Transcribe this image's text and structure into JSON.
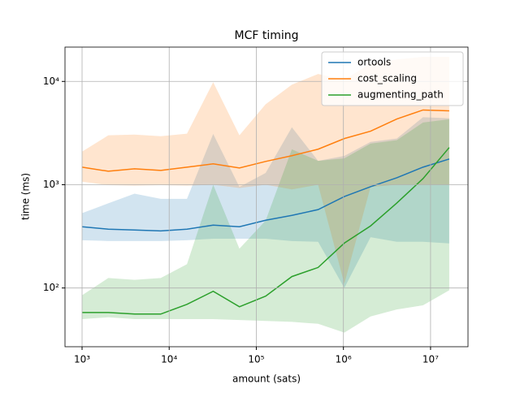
{
  "chart_data": {
    "type": "line",
    "title": "MCF timing",
    "xlabel": "amount (sats)",
    "ylabel": "time (ms)",
    "x": [
      1000,
      2000,
      4000,
      8000,
      16000,
      32000,
      64000,
      128000,
      256000,
      512000,
      1024000,
      2048000,
      4096000,
      8192000,
      16384000
    ],
    "series": [
      {
        "name": "ortools",
        "color": "#1f77b4",
        "values": [
          392,
          371,
          364,
          357,
          371,
          406,
          392,
          453,
          505,
          574,
          768,
          956,
          1167,
          1479,
          1774
        ],
        "lower": [
          290,
          285,
          285,
          285,
          290,
          300,
          300,
          300,
          285,
          280,
          100,
          310,
          280,
          280,
          270
        ],
        "upper": [
          530,
          660,
          820,
          730,
          730,
          3100,
          950,
          1300,
          3600,
          1700,
          1900,
          2600,
          2800,
          4500,
          4400
        ]
      },
      {
        "name": "cost_scaling",
        "color": "#ff7f0e",
        "values": [
          1479,
          1350,
          1426,
          1374,
          1479,
          1592,
          1452,
          1680,
          1909,
          2208,
          2799,
          3296,
          4325,
          5289,
          5190
        ],
        "lower": [
          1070,
          990,
          980,
          990,
          980,
          1000,
          930,
          1000,
          900,
          1000,
          110,
          950,
          1000,
          1000,
          1000
        ],
        "upper": [
          2089,
          3008,
          3060,
          2950,
          3120,
          9820,
          3008,
          6010,
          9300,
          11800,
          10400,
          14900,
          16300,
          17300,
          17300
        ]
      },
      {
        "name": "augmenting_path",
        "color": "#2ca02c",
        "values": [
          57.9,
          57.9,
          55.9,
          55.9,
          69.5,
          92.9,
          65.8,
          83.4,
          129,
          158,
          272,
          399,
          664,
          1146,
          2291
        ],
        "lower": [
          50,
          52,
          50,
          50,
          50,
          50,
          49,
          48,
          47,
          45,
          37,
          53,
          62,
          68,
          95
        ],
        "upper": [
          85,
          125,
          120,
          125,
          170,
          1000,
          240,
          450,
          2200,
          1700,
          1800,
          2500,
          2700,
          4000,
          4300
        ]
      }
    ],
    "xlim": [
      637,
      26900000
    ],
    "ylim": [
      27,
      21500
    ],
    "xscale": "log",
    "yscale": "log",
    "xticks": [
      {
        "value": 1000,
        "label": "10³"
      },
      {
        "value": 10000,
        "label": "10⁴"
      },
      {
        "value": 100000,
        "label": "10⁵"
      },
      {
        "value": 1000000,
        "label": "10⁶"
      },
      {
        "value": 10000000,
        "label": "10⁷"
      }
    ],
    "yticks": [
      {
        "value": 100,
        "label": "10²"
      },
      {
        "value": 1000,
        "label": "10³"
      },
      {
        "value": 10000,
        "label": "10⁴"
      }
    ],
    "grid": true,
    "legend": "upper right"
  }
}
